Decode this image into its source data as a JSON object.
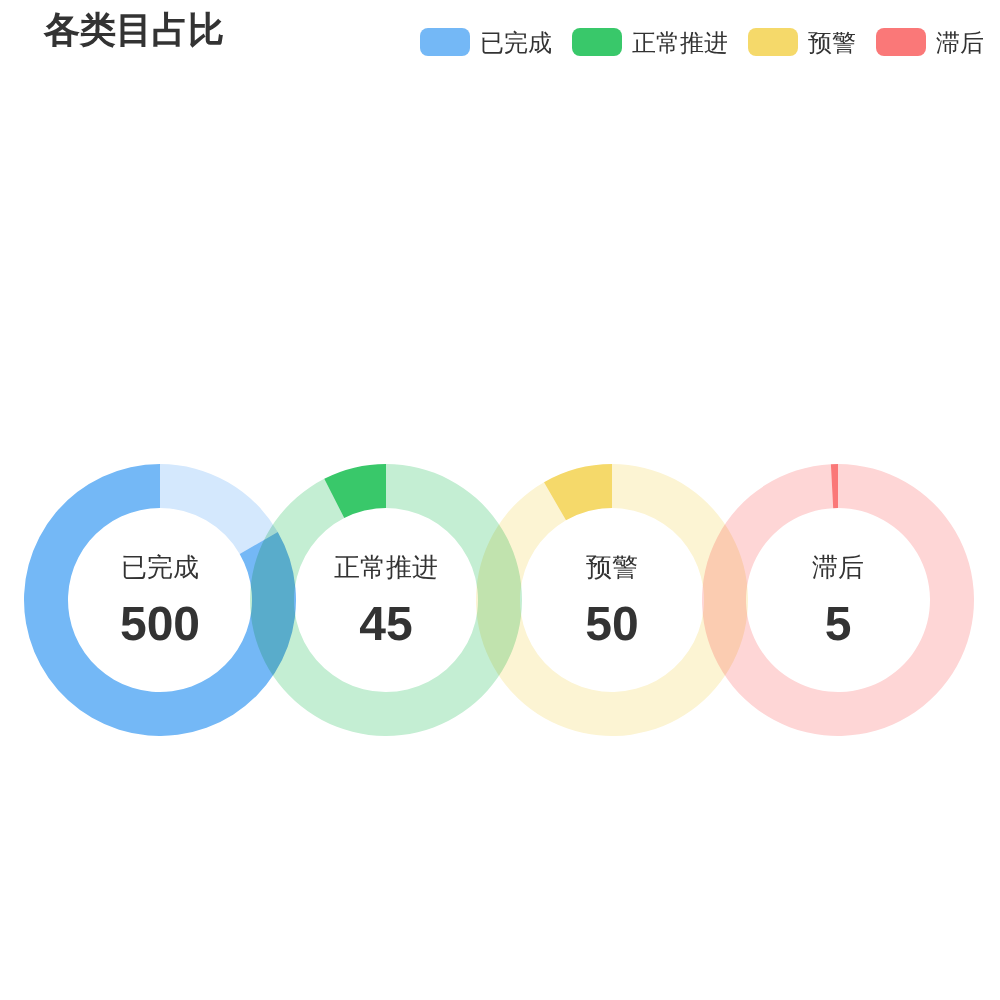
{
  "chart_data": [
    {
      "type": "donut",
      "title": "各类目占比",
      "categories": [
        "已完成",
        null
      ],
      "values": [
        500,
        100
      ],
      "colors": [
        "#74b8f6",
        "#d4e8fd"
      ],
      "value_labels": [
        "500",
        null
      ],
      "legend": "top right"
    },
    {
      "type": "donut",
      "categories": [
        "正常推进",
        null
      ],
      "values": [
        45,
        555
      ],
      "colors": [
        "#39c86a",
        "#c4eed3"
      ],
      "value_labels": [
        "45",
        null
      ],
      "legend": "top right"
    },
    {
      "type": "donut",
      "categories": [
        "预警",
        null
      ],
      "values": [
        50,
        550
      ],
      "colors": [
        "#f5d96a",
        "#fcf4d3"
      ],
      "value_labels": [
        "50",
        null
      ],
      "legend": "top right"
    },
    {
      "type": "donut",
      "categories": [
        "滞后",
        null
      ],
      "values": [
        5,
        595
      ],
      "colors": [
        "#fa7878",
        "#fed6d6"
      ],
      "value_labels": [
        "5",
        null
      ],
      "legend": "top right"
    }
  ]
}
